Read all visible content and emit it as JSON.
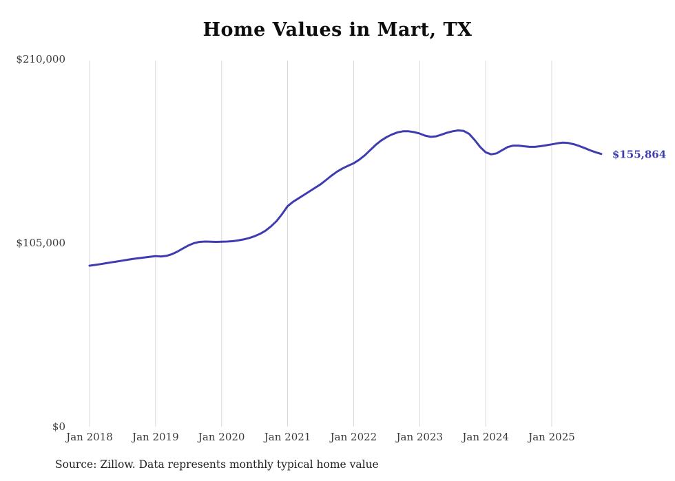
{
  "page": {
    "background": "#ffffff"
  },
  "source_note": "Source: Zillow. Data represents monthly typical home value",
  "chart_data": {
    "type": "line",
    "title": "Home Values in Mart, TX",
    "series_name": "Monthly typical home value",
    "xlabel": "",
    "ylabel": "",
    "ylim": [
      0,
      210000
    ],
    "grid": "vertical-only",
    "legend": "none",
    "line_color": "#3f3cb0",
    "gridline_color": "#d8d8d8",
    "end_label": "$155,864",
    "end_value": 155864,
    "y_ticks": [
      {
        "value": 0,
        "label": "$0"
      },
      {
        "value": 105000,
        "label": "$105,000"
      },
      {
        "value": 210000,
        "label": "$210,000"
      }
    ],
    "x_ticks": [
      {
        "month_index": 0,
        "label": "Jan 2018"
      },
      {
        "month_index": 12,
        "label": "Jan 2019"
      },
      {
        "month_index": 24,
        "label": "Jan 2020"
      },
      {
        "month_index": 36,
        "label": "Jan 2021"
      },
      {
        "month_index": 48,
        "label": "Jan 2022"
      },
      {
        "month_index": 60,
        "label": "Jan 2023"
      },
      {
        "month_index": 72,
        "label": "Jan 2024"
      },
      {
        "month_index": 84,
        "label": "Jan 2025"
      }
    ],
    "x": [
      "2018-01",
      "2018-02",
      "2018-03",
      "2018-04",
      "2018-05",
      "2018-06",
      "2018-07",
      "2018-08",
      "2018-09",
      "2018-10",
      "2018-11",
      "2018-12",
      "2019-01",
      "2019-02",
      "2019-03",
      "2019-04",
      "2019-05",
      "2019-06",
      "2019-07",
      "2019-08",
      "2019-09",
      "2019-10",
      "2019-11",
      "2019-12",
      "2020-01",
      "2020-02",
      "2020-03",
      "2020-04",
      "2020-05",
      "2020-06",
      "2020-07",
      "2020-08",
      "2020-09",
      "2020-10",
      "2020-11",
      "2020-12",
      "2021-01",
      "2021-02",
      "2021-03",
      "2021-04",
      "2021-05",
      "2021-06",
      "2021-07",
      "2021-08",
      "2021-09",
      "2021-10",
      "2021-11",
      "2021-12",
      "2022-01",
      "2022-02",
      "2022-03",
      "2022-04",
      "2022-05",
      "2022-06",
      "2022-07",
      "2022-08",
      "2022-09",
      "2022-10",
      "2022-11",
      "2022-12",
      "2023-01",
      "2023-02",
      "2023-03",
      "2023-04",
      "2023-05",
      "2023-06",
      "2023-07",
      "2023-08",
      "2023-09",
      "2023-10",
      "2023-11",
      "2023-12",
      "2024-01",
      "2024-02",
      "2024-03",
      "2024-04",
      "2024-05",
      "2024-06",
      "2024-07",
      "2024-08",
      "2024-09",
      "2024-10",
      "2024-11",
      "2024-12",
      "2025-01",
      "2025-02",
      "2025-03",
      "2025-04",
      "2025-05",
      "2025-06",
      "2025-07",
      "2025-08",
      "2025-09",
      "2025-10"
    ],
    "values": [
      92000,
      92400,
      92900,
      93400,
      93900,
      94400,
      94900,
      95400,
      95900,
      96300,
      96700,
      97100,
      97400,
      97200,
      97600,
      98600,
      100100,
      101900,
      103600,
      104900,
      105600,
      105800,
      105700,
      105600,
      105700,
      105800,
      106000,
      106400,
      107000,
      107800,
      108800,
      110200,
      112000,
      114500,
      117500,
      121500,
      126000,
      128500,
      130500,
      132500,
      134500,
      136500,
      138500,
      141000,
      143500,
      145800,
      147600,
      149100,
      150500,
      152500,
      155000,
      158000,
      161000,
      163500,
      165500,
      167000,
      168200,
      168800,
      168800,
      168300,
      167500,
      166300,
      165600,
      165900,
      166900,
      168000,
      168800,
      169300,
      169000,
      167300,
      163800,
      159800,
      156800,
      155600,
      156200,
      158000,
      159800,
      160600,
      160600,
      160200,
      159900,
      159900,
      160300,
      160800,
      161300,
      161900,
      162300,
      162100,
      161400,
      160400,
      159200,
      157900,
      156800,
      155864
    ]
  }
}
